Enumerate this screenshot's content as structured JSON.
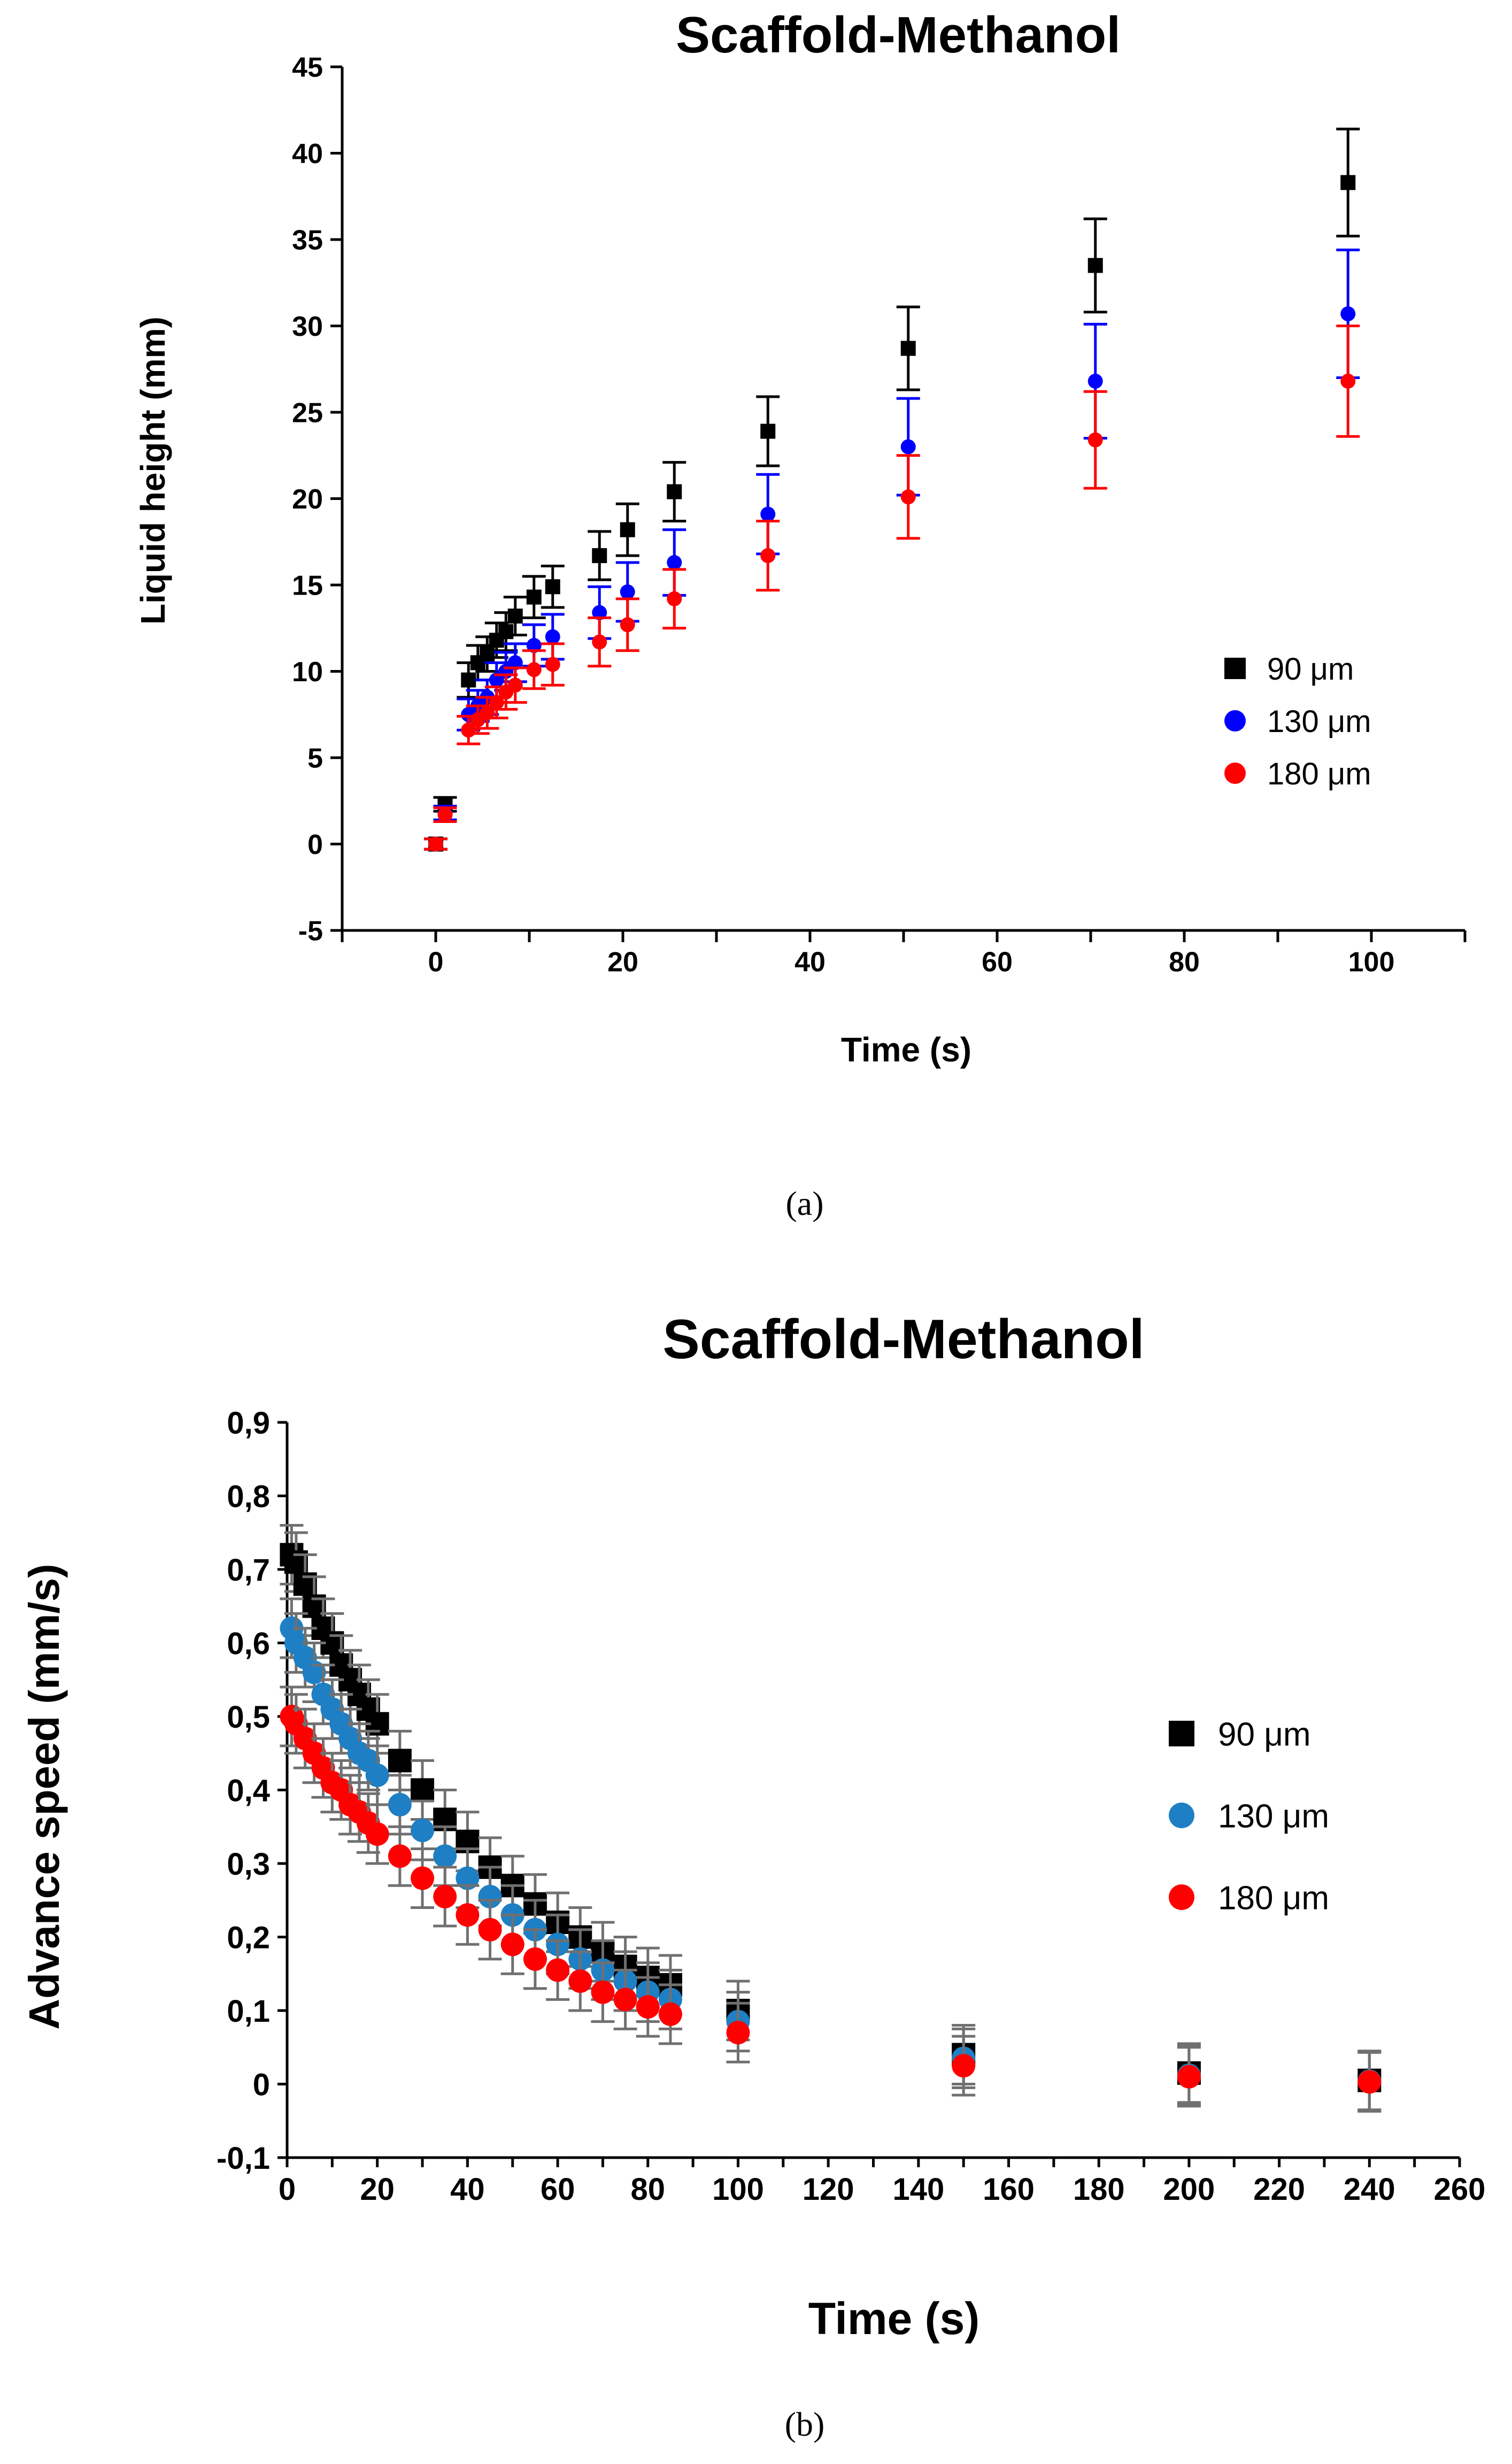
{
  "chart_data": [
    {
      "type": "scatter",
      "title": "Scaffold-Methanol",
      "xlabel": "Time (s)",
      "ylabel": "Liquid height (mm)",
      "caption": "(a)",
      "xlim": [
        -10,
        110
      ],
      "ylim": [
        -5,
        45
      ],
      "xticks": [
        "0",
        "20",
        "40",
        "60",
        "80",
        "100"
      ],
      "yticks": [
        "-5",
        "0",
        "5",
        "10",
        "15",
        "20",
        "25",
        "30",
        "35",
        "40",
        "45"
      ],
      "legend": "right",
      "series": [
        {
          "name": "90 μm",
          "color": "#000000",
          "marker": "square",
          "x": [
            0,
            1,
            3.5,
            4.5,
            5.5,
            6.5,
            7.5,
            8.5,
            10.5,
            12.5,
            17.5,
            20.5,
            25.5,
            35.5,
            50.5,
            70.5,
            97.5
          ],
          "y": [
            0,
            2.3,
            9.5,
            10.5,
            11,
            11.8,
            12.3,
            13.2,
            14.3,
            14.9,
            16.7,
            18.2,
            20.4,
            23.9,
            28.7,
            33.5,
            38.3
          ],
          "err": [
            0.3,
            0.4,
            1,
            1,
            1,
            1,
            1.1,
            1.1,
            1.2,
            1.2,
            1.4,
            1.5,
            1.7,
            2,
            2.4,
            2.7,
            3.1
          ]
        },
        {
          "name": "130 μm",
          "color": "#0000ff",
          "marker": "circle",
          "x": [
            0,
            1,
            3.5,
            4.5,
            5.5,
            6.5,
            7.5,
            8.5,
            10.5,
            12.5,
            17.5,
            20.5,
            25.5,
            35.5,
            50.5,
            70.5,
            97.5
          ],
          "y": [
            0,
            1.8,
            7.5,
            8,
            8.5,
            9.5,
            10,
            10.5,
            11.5,
            12,
            13.4,
            14.6,
            16.3,
            19.1,
            23,
            26.8,
            30.7
          ],
          "err": [
            0.3,
            0.4,
            0.9,
            0.9,
            1,
            1,
            1.1,
            1.1,
            1.2,
            1.3,
            1.5,
            1.7,
            1.9,
            2.3,
            2.8,
            3.3,
            3.7
          ]
        },
        {
          "name": "180 μm",
          "color": "#ff0000",
          "marker": "circle",
          "x": [
            0,
            1,
            3.5,
            4.5,
            5.5,
            6.5,
            7.5,
            8.5,
            10.5,
            12.5,
            17.5,
            20.5,
            25.5,
            35.5,
            50.5,
            70.5,
            97.5
          ],
          "y": [
            0,
            1.7,
            6.6,
            7.2,
            7.6,
            8.2,
            8.8,
            9.2,
            10.1,
            10.4,
            11.7,
            12.7,
            14.2,
            16.7,
            20.1,
            23.4,
            26.8
          ],
          "err": [
            0.3,
            0.4,
            0.8,
            0.8,
            0.9,
            0.9,
            1,
            1,
            1.1,
            1.2,
            1.4,
            1.5,
            1.7,
            2,
            2.4,
            2.8,
            3.2
          ]
        }
      ]
    },
    {
      "type": "scatter",
      "title": "Scaffold-Methanol",
      "xlabel": "Time (s)",
      "ylabel": "Advance speed (mm/s)",
      "caption": "(b)",
      "xlim": [
        0,
        260
      ],
      "ylim": [
        -0.1,
        0.9
      ],
      "xticks": [
        "0",
        "20",
        "40",
        "60",
        "80",
        "100",
        "120",
        "140",
        "160",
        "180",
        "200",
        "220",
        "240",
        "260"
      ],
      "yticks": [
        "-0,1",
        "0",
        "0,1",
        "0,2",
        "0,3",
        "0,4",
        "0,5",
        "0,6",
        "0,7",
        "0,8",
        "0,9"
      ],
      "legend": "right",
      "series": [
        {
          "name": "90 μm",
          "color": "#000000",
          "marker": "square",
          "x": [
            1,
            2,
            4,
            6,
            8,
            10,
            12,
            14,
            16,
            18,
            20,
            25,
            30,
            35,
            40,
            45,
            50,
            55,
            60,
            65,
            70,
            75,
            80,
            85,
            100,
            150,
            200,
            240
          ],
          "y": [
            0.72,
            0.71,
            0.68,
            0.65,
            0.62,
            0.6,
            0.57,
            0.55,
            0.53,
            0.51,
            0.49,
            0.44,
            0.4,
            0.36,
            0.33,
            0.295,
            0.27,
            0.245,
            0.22,
            0.2,
            0.18,
            0.16,
            0.145,
            0.135,
            0.1,
            0.04,
            0.015,
            0.005
          ],
          "err": [
            0.04,
            0.04,
            0.04,
            0.04,
            0.04,
            0.04,
            0.04,
            0.04,
            0.04,
            0.04,
            0.04,
            0.04,
            0.04,
            0.04,
            0.04,
            0.04,
            0.04,
            0.04,
            0.04,
            0.04,
            0.04,
            0.04,
            0.04,
            0.04,
            0.04,
            0.04,
            0.04,
            0.04
          ]
        },
        {
          "name": "130 μm",
          "color": "#1f7fc4",
          "marker": "circle",
          "x": [
            1,
            2,
            4,
            6,
            8,
            10,
            12,
            14,
            16,
            18,
            20,
            25,
            30,
            35,
            40,
            45,
            50,
            55,
            60,
            65,
            70,
            75,
            80,
            85,
            100,
            150,
            200,
            240
          ],
          "y": [
            0.62,
            0.6,
            0.58,
            0.56,
            0.53,
            0.51,
            0.49,
            0.47,
            0.45,
            0.44,
            0.42,
            0.38,
            0.345,
            0.31,
            0.28,
            0.255,
            0.23,
            0.21,
            0.19,
            0.17,
            0.155,
            0.14,
            0.125,
            0.115,
            0.085,
            0.035,
            0.012,
            0.004
          ],
          "err": [
            0.04,
            0.04,
            0.04,
            0.04,
            0.04,
            0.04,
            0.04,
            0.04,
            0.04,
            0.04,
            0.04,
            0.04,
            0.04,
            0.04,
            0.04,
            0.04,
            0.04,
            0.04,
            0.04,
            0.04,
            0.04,
            0.04,
            0.04,
            0.04,
            0.04,
            0.04,
            0.04,
            0.04
          ]
        },
        {
          "name": "180 μm",
          "color": "#ff0000",
          "marker": "circle",
          "x": [
            1,
            2,
            4,
            6,
            8,
            10,
            12,
            14,
            16,
            18,
            20,
            25,
            30,
            35,
            40,
            45,
            50,
            55,
            60,
            65,
            70,
            75,
            80,
            85,
            100,
            150,
            200,
            240
          ],
          "y": [
            0.5,
            0.49,
            0.47,
            0.45,
            0.43,
            0.41,
            0.4,
            0.38,
            0.37,
            0.355,
            0.34,
            0.31,
            0.28,
            0.255,
            0.23,
            0.21,
            0.19,
            0.17,
            0.155,
            0.14,
            0.125,
            0.115,
            0.105,
            0.095,
            0.07,
            0.025,
            0.01,
            0.003
          ],
          "err": [
            0.04,
            0.04,
            0.04,
            0.04,
            0.04,
            0.04,
            0.04,
            0.04,
            0.04,
            0.04,
            0.04,
            0.04,
            0.04,
            0.04,
            0.04,
            0.04,
            0.04,
            0.04,
            0.04,
            0.04,
            0.04,
            0.04,
            0.04,
            0.04,
            0.04,
            0.04,
            0.04,
            0.04
          ]
        }
      ]
    }
  ]
}
